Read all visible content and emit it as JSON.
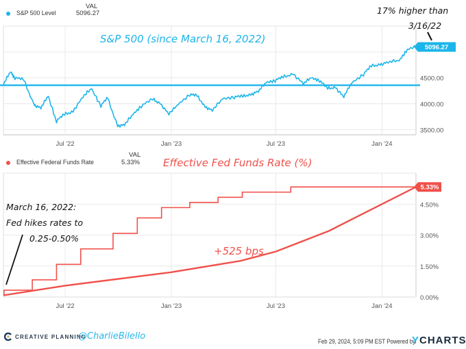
{
  "top_legend": {
    "series_name": "S&P 500 Level",
    "val_header": "VAL",
    "value": "5096.27",
    "color": "#1cb5ea"
  },
  "bottom_legend": {
    "series_name": "Effective Federal Funds Rate",
    "val_header": "VAL",
    "value": "5.33%",
    "color": "#f0504a"
  },
  "annotations": {
    "sp_title": "S&P 500 (since March 16, 2022)",
    "sp_note_line1": "17% higher than",
    "sp_note_line2": "3/16/22",
    "ff_title": "Effective Fed Funds Rate (%)",
    "ff_note_line1": "March 16, 2022:",
    "ff_note_line2": "Fed hikes rates to",
    "ff_note_line3": "0.25-0.50%",
    "ff_bps": "+525 bps"
  },
  "footer": {
    "brand": "CREATIVE PLANNING",
    "handle": "@CharlieBilello",
    "timestamp": "Feb 29, 2024, 5:09 PM EST Powered by",
    "provider": "YCHARTS"
  },
  "chart_data": [
    {
      "type": "line",
      "title": "S&P 500 (since March 16, 2022)",
      "series": [
        {
          "name": "S&P 500 Level",
          "color": "#1cb5ea",
          "x": [
            "2022-03-16",
            "2022-03-29",
            "2022-04-05",
            "2022-04-20",
            "2022-05-09",
            "2022-05-20",
            "2022-06-02",
            "2022-06-16",
            "2022-06-30",
            "2022-07-15",
            "2022-08-01",
            "2022-08-16",
            "2022-09-01",
            "2022-09-13",
            "2022-09-30",
            "2022-10-12",
            "2022-10-27",
            "2022-11-10",
            "2022-11-30",
            "2022-12-13",
            "2022-12-28",
            "2023-01-13",
            "2023-02-02",
            "2023-02-15",
            "2023-03-01",
            "2023-03-13",
            "2023-03-31",
            "2023-04-20",
            "2023-05-05",
            "2023-05-19",
            "2023-06-01",
            "2023-06-15",
            "2023-06-30",
            "2023-07-14",
            "2023-07-31",
            "2023-08-18",
            "2023-09-01",
            "2023-09-15",
            "2023-09-29",
            "2023-10-13",
            "2023-10-27",
            "2023-11-10",
            "2023-11-30",
            "2023-12-14",
            "2023-12-29",
            "2024-01-12",
            "2024-01-31",
            "2024-02-12",
            "2024-02-29"
          ],
          "values": [
            4357,
            4630,
            4500,
            4460,
            3990,
            3900,
            4160,
            3667,
            3785,
            3863,
            4118,
            4305,
            3966,
            4110,
            3585,
            3577,
            3810,
            3956,
            4080,
            4019,
            3783,
            3999,
            4179,
            4147,
            3951,
            3855,
            4109,
            4129,
            4136,
            4191,
            4221,
            4425,
            4450,
            4505,
            4588,
            4370,
            4515,
            4450,
            4288,
            4327,
            4117,
            4415,
            4568,
            4720,
            4770,
            4784,
            4846,
            5022,
            5096
          ]
        },
        {
          "name": "Reference level (3/16/22)",
          "color": "#1cb5ea",
          "values": [
            4357
          ]
        }
      ],
      "xlabel": "",
      "ylabel": "",
      "x_ticks": [
        "Jul '22",
        "Jan '23",
        "Jul '23",
        "Jan '24"
      ],
      "y_ticks": [
        "3500.00",
        "4000.00",
        "4500.00"
      ],
      "ylim": [
        3400,
        5500
      ],
      "end_label": "5096.27",
      "grid": true,
      "legend": "top-left"
    },
    {
      "type": "line",
      "title": "Effective Fed Funds Rate (%)",
      "series": [
        {
          "name": "Effective Federal Funds Rate",
          "color": "#f0504a",
          "step": true,
          "x": [
            "2022-03-16",
            "2022-03-17",
            "2022-05-05",
            "2022-06-16",
            "2022-07-28",
            "2022-09-22",
            "2022-11-03",
            "2022-12-15",
            "2023-02-02",
            "2023-03-23",
            "2023-05-04",
            "2023-07-27",
            "2024-02-29"
          ],
          "values": [
            0.08,
            0.33,
            0.83,
            1.58,
            2.33,
            3.08,
            3.83,
            4.33,
            4.58,
            4.83,
            5.08,
            5.33,
            5.33
          ]
        },
        {
          "name": "+525 bps curve",
          "color": "#f0504a",
          "x": [
            "2022-03-16",
            "2022-07-01",
            "2023-01-01",
            "2023-05-01",
            "2023-07-01",
            "2023-10-01",
            "2024-01-01",
            "2024-02-29"
          ],
          "values": [
            0.08,
            0.55,
            1.2,
            1.75,
            2.2,
            3.2,
            4.5,
            5.33
          ]
        }
      ],
      "x_ticks": [
        "Jul '22",
        "Jan '23",
        "Jul '23",
        "Jan '24"
      ],
      "y_ticks": [
        "0.00%",
        "1.50%",
        "3.00%",
        "4.50%"
      ],
      "ylim": [
        0,
        6
      ],
      "end_label": "5.33%",
      "grid": true,
      "legend": "top-left"
    }
  ]
}
